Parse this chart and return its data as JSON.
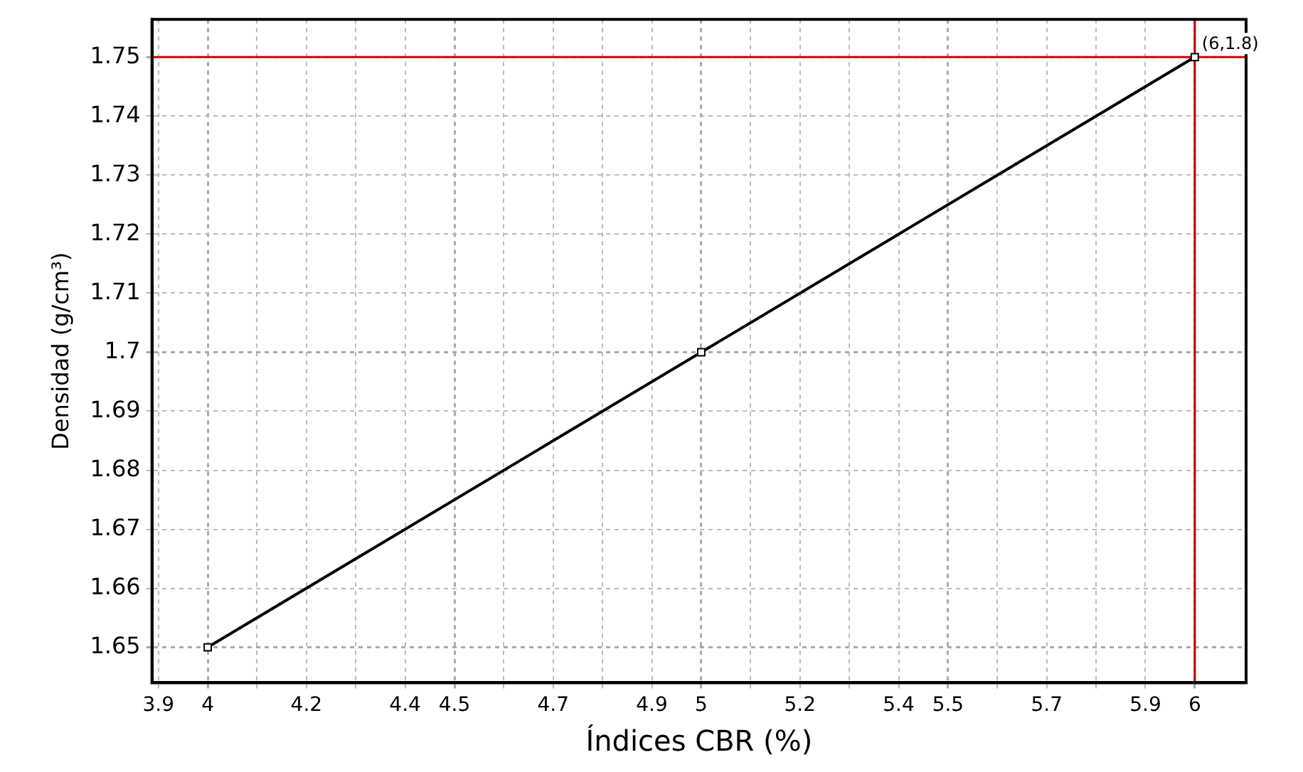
{
  "chart_data": {
    "type": "line",
    "xlabel": "Índices CBR (%)",
    "ylabel": "Densidad (g/cm³)",
    "x": [
      4,
      5,
      6
    ],
    "series": [
      {
        "color": "#000000",
        "values": [
          1.65,
          1.7,
          1.75
        ]
      }
    ],
    "marker": "square",
    "line_style": "solid",
    "grid": true,
    "legend": false,
    "xlim": [
      3.887,
      6.104
    ],
    "xticks": [
      3.9,
      4,
      {
        "value": 4.1,
        "label": null
      },
      4.2,
      {
        "value": 4.3,
        "label": null
      },
      4.4,
      4.5,
      {
        "value": 4.6,
        "label": null
      },
      4.7,
      {
        "value": 4.8,
        "label": null
      },
      4.9,
      5,
      {
        "value": 5.1,
        "label": null
      },
      5.2,
      {
        "value": 5.3,
        "label": null
      },
      5.4,
      5.5,
      {
        "value": 5.6,
        "label": null
      },
      5.7,
      {
        "value": 5.8,
        "label": null
      },
      5.9,
      6
    ],
    "ylim": [
      1.644,
      1.7564
    ],
    "yticks": [
      1.65,
      1.66,
      1.67,
      1.68,
      1.69,
      1.7,
      1.71,
      1.72,
      1.73,
      1.74,
      1.75
    ],
    "ref_lines": [
      {
        "axis": "y",
        "value": 1.75,
        "color": "#e00000"
      },
      {
        "axis": "x",
        "value": 6,
        "color": "#c00000"
      }
    ],
    "annotations": [
      {
        "text": "(6,1.8)",
        "x": 6,
        "y": 1.75
      }
    ]
  }
}
